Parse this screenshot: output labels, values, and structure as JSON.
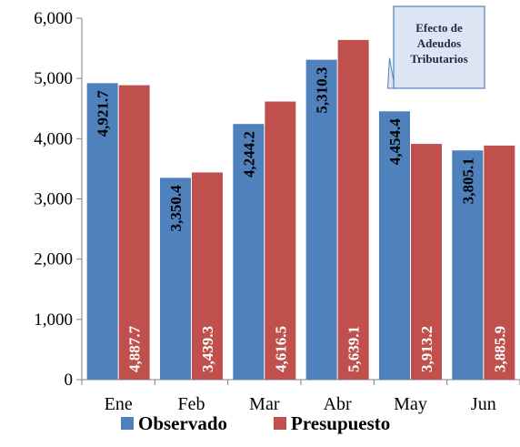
{
  "chart_data": {
    "type": "bar",
    "categories": [
      "Ene",
      "Feb",
      "Mar",
      "Abr",
      "May",
      "Jun"
    ],
    "series": [
      {
        "name": "Observado",
        "values": [
          4921.7,
          3350.4,
          4244.2,
          5310.3,
          4454.4,
          3805.1
        ],
        "labels": [
          "4,921.7",
          "3,350.4",
          "4,244.2",
          "5,310.3",
          "4,454.4",
          "3,805.1"
        ]
      },
      {
        "name": "Presupuesto",
        "values": [
          4887.7,
          3439.3,
          4616.5,
          5639.1,
          3913.2,
          3885.9
        ],
        "labels": [
          "4,887.7",
          "3,439.3",
          "4,616.5",
          "5,639.1",
          "3,913.2",
          "3,885.9"
        ]
      }
    ],
    "ylim": [
      0,
      6000
    ],
    "yticks": [
      0,
      1000,
      2000,
      3000,
      4000,
      5000,
      6000
    ],
    "ytick_labels": [
      "0",
      "1,000",
      "2,000",
      "3,000",
      "4,000",
      "5,000",
      "6,000"
    ],
    "legend_position": "bottom",
    "grid": false,
    "annotation": {
      "lines": [
        "Efecto de",
        "Adeudos",
        "Tributarios"
      ]
    }
  },
  "colors": {
    "observado": "#4f81bd",
    "presupuesto": "#c0504d",
    "callout_fill": "#dbe5f4",
    "callout_border": "#4f81bd"
  }
}
